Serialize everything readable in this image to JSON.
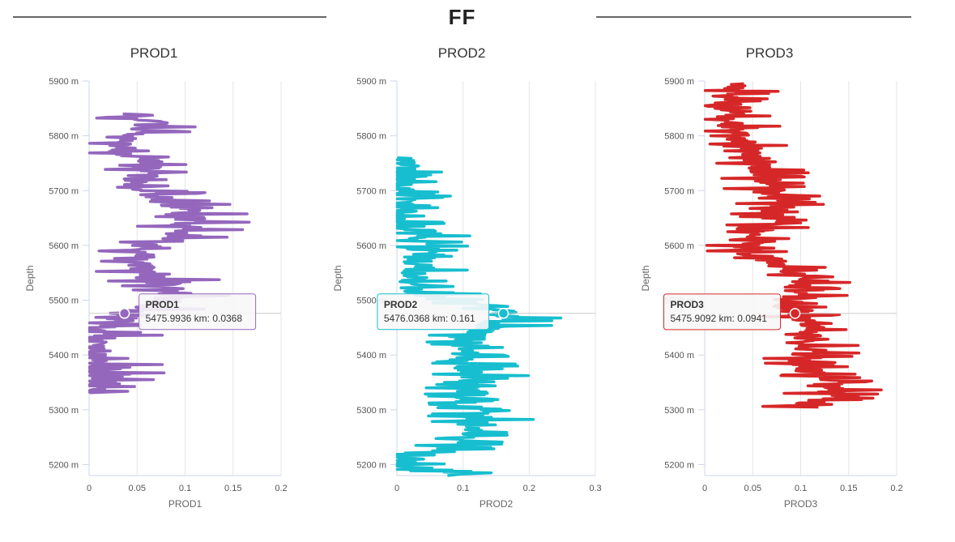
{
  "page": {
    "title": "FF"
  },
  "chart_data": [
    {
      "type": "line",
      "title": "PROD1",
      "xlabel": "PROD1",
      "ylabel": "Depth",
      "xlim": [
        0,
        0.2
      ],
      "ylim": [
        5180,
        5900
      ],
      "x_ticks": [
        "0",
        "0.05",
        "0.1",
        "0.15",
        "0.2"
      ],
      "x_tick_values": [
        0,
        0.05,
        0.1,
        0.15,
        0.2
      ],
      "y_ticks": [
        "5200 m",
        "5300 m",
        "5400 m",
        "5500 m",
        "5600 m",
        "5700 m",
        "5800 m",
        "5900 m"
      ],
      "y_tick_values": [
        5200,
        5300,
        5400,
        5500,
        5600,
        5700,
        5800,
        5900
      ],
      "color": "#9467bd",
      "depth_range": [
        5330,
        5840
      ],
      "profile": [
        [
          5330,
          0.006
        ],
        [
          5350,
          0.018
        ],
        [
          5370,
          0.012
        ],
        [
          5390,
          0.014
        ],
        [
          5410,
          0.006
        ],
        [
          5440,
          0.012
        ],
        [
          5460,
          0.03
        ],
        [
          5475.9936,
          0.0368
        ],
        [
          5490,
          0.07
        ],
        [
          5510,
          0.09
        ],
        [
          5530,
          0.08
        ],
        [
          5550,
          0.055
        ],
        [
          5570,
          0.045
        ],
        [
          5590,
          0.06
        ],
        [
          5610,
          0.085
        ],
        [
          5630,
          0.1
        ],
        [
          5650,
          0.105
        ],
        [
          5670,
          0.095
        ],
        [
          5690,
          0.065
        ],
        [
          5710,
          0.05
        ],
        [
          5730,
          0.055
        ],
        [
          5750,
          0.065
        ],
        [
          5770,
          0.035
        ],
        [
          5790,
          0.03
        ],
        [
          5810,
          0.055
        ],
        [
          5825,
          0.07
        ],
        [
          5840,
          0.045
        ]
      ],
      "amplitude": 0.06,
      "seed": 11,
      "tooltip": {
        "series": "PROD1",
        "text": "5475.9936 km: 0.0368",
        "x": 0.0368,
        "y": 5475.9936,
        "align": "right"
      }
    },
    {
      "type": "line",
      "title": "PROD2",
      "xlabel": "PROD2",
      "ylabel": "Depth",
      "xlim": [
        0,
        0.3
      ],
      "ylim": [
        5180,
        5900
      ],
      "x_ticks": [
        "0",
        "0.1",
        "0.2",
        "0.3"
      ],
      "x_tick_values": [
        0,
        0.1,
        0.2,
        0.3
      ],
      "y_ticks": [
        "5200 m",
        "5300 m",
        "5400 m",
        "5500 m",
        "5600 m",
        "5700 m",
        "5800 m",
        "5900 m"
      ],
      "y_tick_values": [
        5200,
        5300,
        5400,
        5500,
        5600,
        5700,
        5800,
        5900
      ],
      "color": "#17becf",
      "depth_range": [
        5180,
        5760
      ],
      "profile": [
        [
          5180,
          0.09
        ],
        [
          5190,
          0.05
        ],
        [
          5200,
          0.008
        ],
        [
          5215,
          0.006
        ],
        [
          5230,
          0.07
        ],
        [
          5250,
          0.1
        ],
        [
          5280,
          0.12
        ],
        [
          5310,
          0.11
        ],
        [
          5340,
          0.115
        ],
        [
          5370,
          0.11
        ],
        [
          5400,
          0.1
        ],
        [
          5430,
          0.11
        ],
        [
          5450,
          0.14
        ],
        [
          5465,
          0.17
        ],
        [
          5476.0368,
          0.161
        ],
        [
          5490,
          0.15
        ],
        [
          5510,
          0.04
        ],
        [
          5530,
          0.02
        ],
        [
          5550,
          0.03
        ],
        [
          5570,
          0.035
        ],
        [
          5590,
          0.04
        ],
        [
          5610,
          0.035
        ],
        [
          5625,
          0.045
        ],
        [
          5640,
          0.004
        ],
        [
          5660,
          0.01
        ],
        [
          5700,
          0.006
        ],
        [
          5730,
          0.008
        ],
        [
          5760,
          0.005
        ]
      ],
      "amplitude": 0.08,
      "seed": 23,
      "tooltip": {
        "series": "PROD2",
        "text": "5476.0368 km: 0.161",
        "x": 0.161,
        "y": 5476.0368,
        "align": "left"
      }
    },
    {
      "type": "line",
      "title": "PROD3",
      "xlabel": "PROD3",
      "ylabel": "Depth",
      "xlim": [
        0,
        0.2
      ],
      "ylim": [
        5180,
        5900
      ],
      "x_ticks": [
        "0",
        "0.05",
        "0.1",
        "0.15",
        "0.2"
      ],
      "x_tick_values": [
        0,
        0.05,
        0.1,
        0.15,
        0.2
      ],
      "y_ticks": [
        "5200 m",
        "5300 m",
        "5400 m",
        "5500 m",
        "5600 m",
        "5700 m",
        "5800 m",
        "5900 m"
      ],
      "y_tick_values": [
        5200,
        5300,
        5400,
        5500,
        5600,
        5700,
        5800,
        5900
      ],
      "color": "#d62728",
      "depth_range": [
        5305,
        5895
      ],
      "profile": [
        [
          5305,
          0.1
        ],
        [
          5320,
          0.12
        ],
        [
          5340,
          0.135
        ],
        [
          5360,
          0.12
        ],
        [
          5380,
          0.1
        ],
        [
          5400,
          0.105
        ],
        [
          5420,
          0.11
        ],
        [
          5440,
          0.105
        ],
        [
          5460,
          0.115
        ],
        [
          5475.9092,
          0.0941
        ],
        [
          5490,
          0.085
        ],
        [
          5510,
          0.095
        ],
        [
          5530,
          0.1
        ],
        [
          5550,
          0.09
        ],
        [
          5570,
          0.075
        ],
        [
          5590,
          0.04
        ],
        [
          5610,
          0.05
        ],
        [
          5630,
          0.065
        ],
        [
          5650,
          0.07
        ],
        [
          5670,
          0.075
        ],
        [
          5690,
          0.065
        ],
        [
          5710,
          0.06
        ],
        [
          5730,
          0.06
        ],
        [
          5750,
          0.055
        ],
        [
          5770,
          0.05
        ],
        [
          5790,
          0.04
        ],
        [
          5810,
          0.03
        ],
        [
          5830,
          0.025
        ],
        [
          5850,
          0.025
        ],
        [
          5870,
          0.02
        ],
        [
          5885,
          0.025
        ],
        [
          5895,
          0.03
        ]
      ],
      "amplitude": 0.05,
      "seed": 37,
      "tooltip": {
        "series": "PROD3",
        "text": "5475.9092 km: 0.0941",
        "x": 0.0941,
        "y": 5475.9092,
        "align": "left"
      }
    }
  ]
}
